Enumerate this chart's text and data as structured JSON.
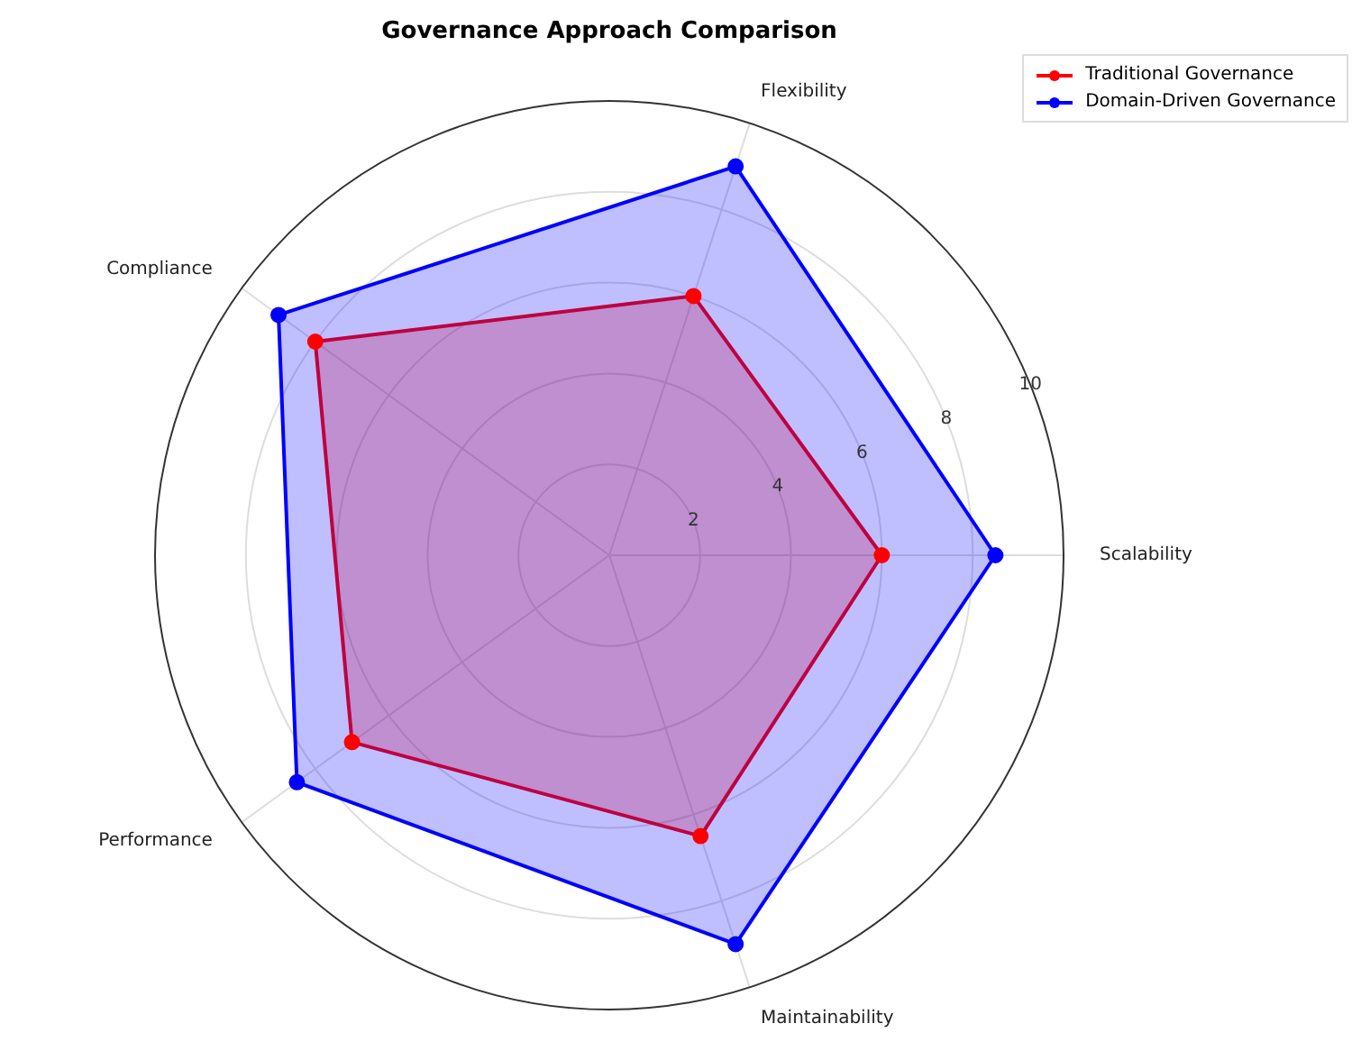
{
  "chart_data": {
    "type": "radar",
    "title": "Governance Approach Comparison",
    "categories": [
      "Flexibility",
      "Scalability",
      "Maintainability",
      "Performance",
      "Compliance"
    ],
    "series": [
      {
        "name": "Traditional Governance",
        "color": "#ff0000",
        "values": [
          6,
          6,
          6.5,
          7,
          8
        ]
      },
      {
        "name": "Domain-Driven Governance",
        "color": "#0000ff",
        "values": [
          9,
          8.5,
          9,
          8.5,
          9
        ]
      }
    ],
    "ylim": [
      0,
      10
    ],
    "yticks": [
      2,
      4,
      6,
      8,
      10
    ],
    "grid": true,
    "legend": "top right",
    "marker": "circle",
    "line_style": "solid"
  }
}
